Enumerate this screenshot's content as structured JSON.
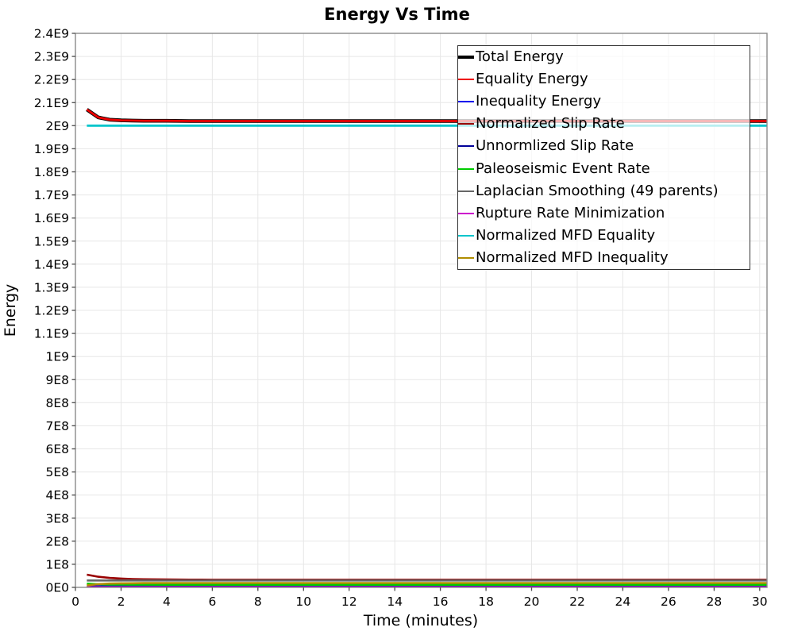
{
  "figure": {
    "background": "#ffffff"
  },
  "chart_data": {
    "type": "line",
    "title": "Energy Vs Time",
    "xlabel": "Time (minutes)",
    "ylabel": "Energy",
    "xlim": [
      0,
      30.32
    ],
    "ylim": [
      0,
      2400000000
    ],
    "grid": true,
    "legend_position": "top-right",
    "xticks": {
      "values": [
        0,
        2,
        4,
        6,
        8,
        10,
        12,
        14,
        16,
        18,
        20,
        22,
        24,
        26,
        28,
        30
      ],
      "labels": [
        "0",
        "2",
        "4",
        "6",
        "8",
        "10",
        "12",
        "14",
        "16",
        "18",
        "20",
        "22",
        "24",
        "26",
        "28",
        "30"
      ]
    },
    "yticks": {
      "values": [
        0,
        100000000,
        200000000,
        300000000,
        400000000,
        500000000,
        600000000,
        700000000,
        800000000,
        900000000,
        1000000000,
        1100000000,
        1200000000,
        1300000000,
        1400000000,
        1500000000,
        1600000000,
        1700000000,
        1800000000,
        1900000000,
        2000000000,
        2100000000,
        2200000000,
        2300000000,
        2400000000
      ],
      "labels": [
        "0E0",
        "1E8",
        "2E8",
        "3E8",
        "4E8",
        "5E8",
        "6E8",
        "7E8",
        "8E8",
        "9E8",
        "1E9",
        "1.1E9",
        "1.2E9",
        "1.3E9",
        "1.4E9",
        "1.5E9",
        "1.6E9",
        "1.7E9",
        "1.8E9",
        "1.9E9",
        "2E9",
        "2.1E9",
        "2.2E9",
        "2.3E9",
        "2.4E9"
      ]
    },
    "x": [
      0.5,
      1,
      1.5,
      2,
      2.5,
      3,
      4,
      5,
      6,
      8,
      10,
      12,
      14,
      16,
      18,
      20,
      22,
      24,
      26,
      28,
      30,
      30.32
    ],
    "series": [
      {
        "name": "Total Energy",
        "color": "#000000",
        "width": 4.6,
        "values": [
          2070000000,
          2036000000,
          2026000000,
          2023000000,
          2022000000,
          2021000000,
          2021000000,
          2020000000,
          2020000000,
          2020000000,
          2020000000,
          2020000000,
          2020000000,
          2020000000,
          2020000000,
          2020000000,
          2020000000,
          2020000000,
          2020000000,
          2020000000,
          2020000000,
          2020000000
        ]
      },
      {
        "name": "Equality Energy",
        "color": "#ee0000",
        "width": 2.8,
        "values": [
          2070000000,
          2036000000,
          2026000000,
          2023000000,
          2022000000,
          2021000000,
          2021000000,
          2020000000,
          2020000000,
          2020000000,
          2020000000,
          2020000000,
          2020000000,
          2020000000,
          2020000000,
          2020000000,
          2020000000,
          2020000000,
          2020000000,
          2020000000,
          2020000000,
          2020000000
        ]
      },
      {
        "name": "Inequality Energy",
        "color": "#0000ee",
        "width": 2.6,
        "values": [
          4000000,
          4000000,
          4000000,
          4000000,
          4000000,
          4000000,
          4000000,
          4000000,
          4000000,
          4000000,
          4000000,
          4000000,
          4000000,
          4000000,
          4000000,
          4000000,
          4000000,
          4000000,
          4000000,
          4000000,
          4000000,
          4000000
        ]
      },
      {
        "name": "Normalized Slip Rate",
        "color": "#990000",
        "width": 2.6,
        "values": [
          55000000,
          46000000,
          41000000,
          38000000,
          36000000,
          35000000,
          34000000,
          33500000,
          33000000,
          33000000,
          33000000,
          33000000,
          33000000,
          33000000,
          33000000,
          33000000,
          33000000,
          33000000,
          33000000,
          33000000,
          33000000,
          33000000
        ]
      },
      {
        "name": "Unnormlized Slip Rate",
        "color": "#000099",
        "width": 2.6,
        "values": [
          2500000,
          2500000,
          2500000,
          2500000,
          2500000,
          2500000,
          2500000,
          2500000,
          2500000,
          2500000,
          2500000,
          2500000,
          2500000,
          2500000,
          2500000,
          2500000,
          2500000,
          2500000,
          2500000,
          2500000,
          2500000,
          2500000
        ]
      },
      {
        "name": "Paleoseismic Event Rate",
        "color": "#00cc00",
        "width": 2.6,
        "values": [
          16000000,
          13500000,
          12500000,
          12000000,
          11800000,
          11600000,
          11400000,
          11300000,
          11200000,
          11200000,
          11200000,
          11200000,
          11200000,
          11200000,
          11200000,
          11200000,
          11200000,
          11200000,
          11200000,
          11200000,
          11200000,
          11200000
        ]
      },
      {
        "name": "Laplacian Smoothing (49 parents)",
        "color": "#666666",
        "width": 2.6,
        "values": [
          30000000,
          30000000,
          30000000,
          30000000,
          30000000,
          30000000,
          30000000,
          30000000,
          30000000,
          30000000,
          30000000,
          30000000,
          30000000,
          30000000,
          30000000,
          30000000,
          30000000,
          30000000,
          30000000,
          30000000,
          30000000,
          30000000
        ]
      },
      {
        "name": "Rupture Rate Minimization",
        "color": "#cc00cc",
        "width": 2.6,
        "values": [
          800000,
          800000,
          800000,
          800000,
          800000,
          800000,
          800000,
          800000,
          800000,
          800000,
          800000,
          800000,
          800000,
          800000,
          800000,
          800000,
          800000,
          800000,
          800000,
          800000,
          800000,
          800000
        ]
      },
      {
        "name": "Normalized MFD Equality",
        "color": "#00c5cc",
        "width": 2.8,
        "values": [
          2000000000,
          2000000000,
          2000000000,
          2000000000,
          2000000000,
          2000000000,
          2000000000,
          2000000000,
          2000000000,
          2000000000,
          2000000000,
          2000000000,
          2000000000,
          2000000000,
          2000000000,
          2000000000,
          2000000000,
          2000000000,
          2000000000,
          2000000000,
          2000000000,
          2000000000
        ]
      },
      {
        "name": "Normalized MFD Inequality",
        "color": "#b08d00",
        "width": 2.6,
        "values": [
          9000000,
          14000000,
          16500000,
          17500000,
          18000000,
          18500000,
          19000000,
          19000000,
          19000000,
          19000000,
          19000000,
          19000000,
          19000000,
          19000000,
          19000000,
          19000000,
          19000000,
          19000000,
          19000000,
          19000000,
          19000000,
          19000000
        ]
      }
    ]
  }
}
